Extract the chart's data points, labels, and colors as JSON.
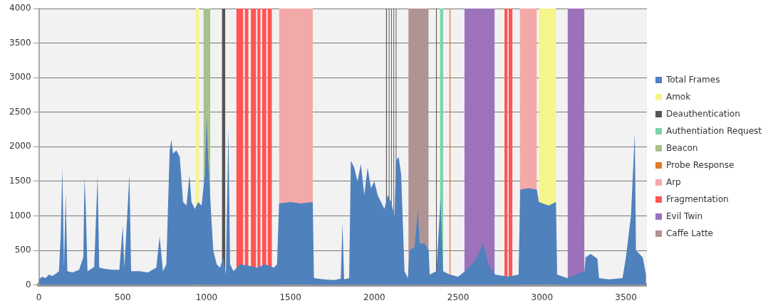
{
  "chart_data": {
    "type": "area",
    "xlim": [
      0,
      3625
    ],
    "xticks": [
      0,
      500,
      1000,
      1500,
      2000,
      2500,
      3000,
      3500
    ],
    "ylim": [
      0,
      4000
    ],
    "yticks": [
      0,
      500,
      1000,
      1500,
      2000,
      2500,
      3000,
      3500,
      4000
    ],
    "grid": "y",
    "legend": "right",
    "marker": "none",
    "series": [
      {
        "name": "Total Frames",
        "color": "#4f81bd",
        "x": [
          0,
          20,
          40,
          60,
          80,
          100,
          120,
          130,
          140,
          150,
          160,
          170,
          200,
          240,
          265,
          272,
          280,
          290,
          330,
          350,
          360,
          400,
          440,
          480,
          500,
          510,
          540,
          550,
          600,
          650,
          700,
          720,
          740,
          760,
          780,
          790,
          800,
          820,
          840,
          860,
          880,
          898,
          910,
          930,
          950,
          970,
          990,
          1000,
          1010,
          1030,
          1040,
          1060,
          1080,
          1100,
          1115,
          1130,
          1140,
          1160,
          1200,
          1250,
          1300,
          1350,
          1400,
          1420,
          1432,
          1500,
          1560,
          1633,
          1640,
          1700,
          1760,
          1800,
          1810,
          1820,
          1850,
          1860,
          1880,
          1900,
          1920,
          1940,
          1960,
          1980,
          2000,
          2020,
          2040,
          2060,
          2080,
          2100,
          2120,
          2130,
          2145,
          2160,
          2180,
          2200,
          2210,
          2240,
          2260,
          2270,
          2300,
          2324,
          2330,
          2370,
          2395,
          2410,
          2450,
          2500,
          2540,
          2600,
          2650,
          2680,
          2720,
          2800,
          2860,
          2870,
          2920,
          2969,
          2981,
          3040,
          3083,
          3090,
          3150,
          3200,
          3253,
          3260,
          3290,
          3330,
          3340,
          3400,
          3480,
          3500,
          3530,
          3553,
          3560,
          3600,
          3620
        ],
        "values": [
          80,
          120,
          100,
          150,
          130,
          160,
          200,
          700,
          1700,
          250,
          1330,
          200,
          180,
          220,
          400,
          1560,
          1100,
          200,
          260,
          1580,
          250,
          230,
          220,
          220,
          850,
          250,
          1600,
          200,
          200,
          180,
          250,
          700,
          200,
          300,
          1950,
          2100,
          1900,
          1950,
          1850,
          1200,
          1150,
          1590,
          1200,
          1100,
          1200,
          1150,
          1600,
          2420,
          1800,
          900,
          500,
          300,
          250,
          400,
          150,
          2280,
          300,
          200,
          300,
          280,
          250,
          300,
          250,
          300,
          1180,
          1200,
          1180,
          1200,
          100,
          80,
          70,
          90,
          900,
          80,
          100,
          1800,
          1700,
          1500,
          1750,
          1300,
          1700,
          1400,
          1500,
          1300,
          1200,
          1100,
          1300,
          1200,
          1000,
          1800,
          1850,
          1600,
          200,
          100,
          500,
          550,
          1100,
          600,
          600,
          500,
          150,
          200,
          1250,
          200,
          150,
          120,
          200,
          350,
          600,
          300,
          150,
          120,
          150,
          1380,
          1400,
          1380,
          1200,
          1150,
          1200,
          150,
          100,
          150,
          200,
          400,
          450,
          380,
          100,
          80,
          100,
          400,
          1000,
          2200,
          500,
          400,
          150
        ]
      },
      {
        "name": "Amok",
        "color": "#f5f58c",
        "x": [
          936,
          954,
          954,
          2981,
          2981,
          3083
        ],
        "values": [
          4000,
          4000,
          0,
          0,
          4000,
          4000
        ]
      },
      {
        "name": "Deauthentication",
        "color": "#555555",
        "x": [
          1091,
          1111,
          1111,
          2070,
          2070,
          2075,
          2075,
          2086,
          2086,
          2090,
          2090,
          2100,
          2100,
          2104,
          2104,
          2114,
          2114,
          2118,
          2118,
          2128,
          2128,
          2132,
          2132,
          2368,
          2368,
          2373
        ],
        "values": [
          4000,
          4000,
          0,
          0,
          4000,
          4000,
          0,
          0,
          4000,
          4000,
          0,
          0,
          4000,
          4000,
          0,
          0,
          4000,
          4000,
          0,
          0,
          4000,
          4000,
          0,
          0,
          4000,
          4000
        ]
      },
      {
        "name": "Authentiation Request",
        "color": "#7dd3a7",
        "x": [
          2391,
          2411
        ],
        "values": [
          4000,
          4000
        ]
      },
      {
        "name": "Beacon",
        "color": "#a8c08a",
        "x": [
          981,
          1022
        ],
        "values": [
          4000,
          4000
        ]
      },
      {
        "name": "Probe Response",
        "color": "#e07b2a",
        "x": [
          2448,
          2455
        ],
        "values": [
          4000,
          4000
        ]
      },
      {
        "name": "Arp",
        "color": "#f4a9a9",
        "x": [
          1432,
          1633,
          1633,
          2868,
          2868,
          2969
        ],
        "values": [
          4000,
          4000,
          0,
          0,
          4000,
          4000
        ]
      },
      {
        "name": "Fragmentation",
        "color": "#ff5555",
        "x": [
          1177,
          1218,
          1218,
          1228,
          1228,
          1249,
          1249,
          1264,
          1264,
          1295,
          1295,
          1303,
          1303,
          1321,
          1321,
          1331,
          1331,
          1356,
          1356,
          1364,
          1364,
          1389,
          1389,
          2776,
          2776,
          2794,
          2794,
          2801,
          2801,
          2824
        ],
        "values": [
          4000,
          4000,
          0,
          0,
          4000,
          4000,
          0,
          0,
          4000,
          4000,
          0,
          0,
          4000,
          4000,
          0,
          0,
          4000,
          4000,
          0,
          0,
          4000,
          4000,
          0,
          0,
          4000,
          4000,
          0,
          0,
          4000,
          4000
        ]
      },
      {
        "name": "Evil Twin",
        "color": "#9c72bb",
        "x": [
          2537,
          2717,
          2717,
          3153,
          3153,
          3253
        ],
        "values": [
          4000,
          4000,
          0,
          0,
          4000,
          4000
        ]
      },
      {
        "name": "Caffe Latte",
        "color": "#b09494",
        "x": [
          2203,
          2324
        ],
        "values": [
          4000,
          4000
        ]
      }
    ]
  }
}
